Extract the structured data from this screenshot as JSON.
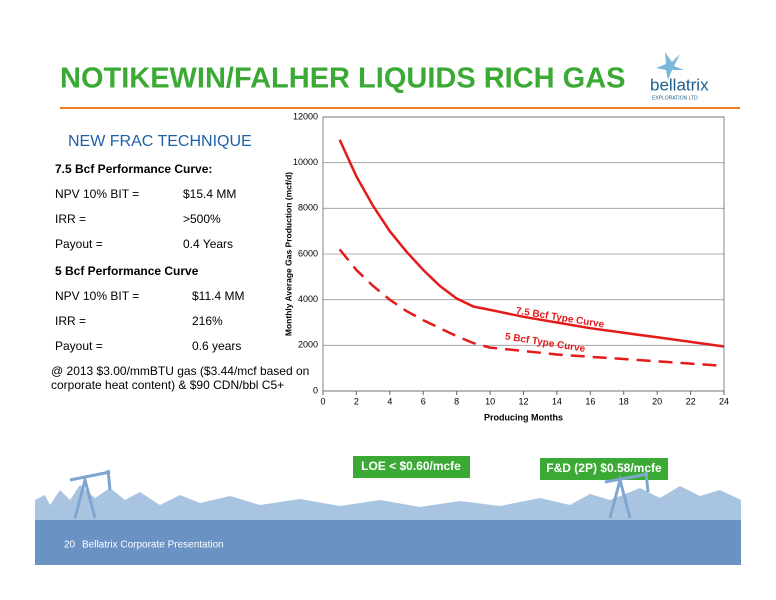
{
  "header": {
    "title": "NOTIKEWIN/FALHER LIQUIDS RICH GAS",
    "logo": "bellatrix",
    "logo_sub": "EXPLORATION LTD"
  },
  "left": {
    "subtitle": "NEW FRAC TECHNIQUE",
    "sections": [
      {
        "heading": "7.5 Bcf Performance Curve:",
        "rows": [
          [
            "NPV 10% BIT =",
            "$15.4 MM"
          ],
          [
            "IRR =",
            ">500%"
          ],
          [
            "Payout =",
            "0.4 Years"
          ]
        ]
      },
      {
        "heading": "5 Bcf Performance Curve",
        "rows": [
          [
            "NPV 10% BIT =",
            "$11.4 MM"
          ],
          [
            "IRR =",
            "216%"
          ],
          [
            "Payout =",
            "0.6 years"
          ]
        ]
      }
    ],
    "note": [
      "@ 2013 $3.00/mmBTU gas ($3.44/mcf based on",
      "corporate heat content) & $90 CDN/bbl C5+"
    ]
  },
  "chart_data": {
    "type": "line",
    "x_label": "Producing Months",
    "y_label": "Monthly Average Gas Production (mcf/d)",
    "x": [
      1,
      2,
      3,
      4,
      5,
      6,
      7,
      8,
      9,
      10,
      12,
      14,
      16,
      18,
      20,
      22,
      24
    ],
    "series": [
      {
        "name": "7.5 Bcf Type Curve",
        "color": "#e41b1b",
        "style": "solid",
        "values": [
          11000,
          9400,
          8100,
          7000,
          6100,
          5300,
          4600,
          4050,
          3700,
          3550,
          3250,
          3000,
          2750,
          2550,
          2350,
          2150,
          1950
        ]
      },
      {
        "name": "5 Bcf Type Curve",
        "color": "#e41b1b",
        "style": "dashed",
        "values": [
          6200,
          5300,
          4600,
          4000,
          3500,
          3100,
          2750,
          2400,
          2100,
          1900,
          1750,
          1600,
          1500,
          1400,
          1300,
          1200,
          1100
        ]
      }
    ],
    "xlim": [
      0,
      24
    ],
    "xticks": [
      0,
      2,
      4,
      6,
      8,
      10,
      12,
      14,
      16,
      18,
      20,
      22,
      24
    ],
    "ylim": [
      0,
      12000
    ],
    "yticks": [
      0,
      2000,
      4000,
      6000,
      8000,
      10000,
      12000
    ],
    "grid": true
  },
  "boxes": [
    "LOE < $0.60/mcfe",
    "F&D (2P) $0.58/mcfe"
  ],
  "footer": {
    "page": "20",
    "text": "Bellatrix Corporate Presentation"
  }
}
